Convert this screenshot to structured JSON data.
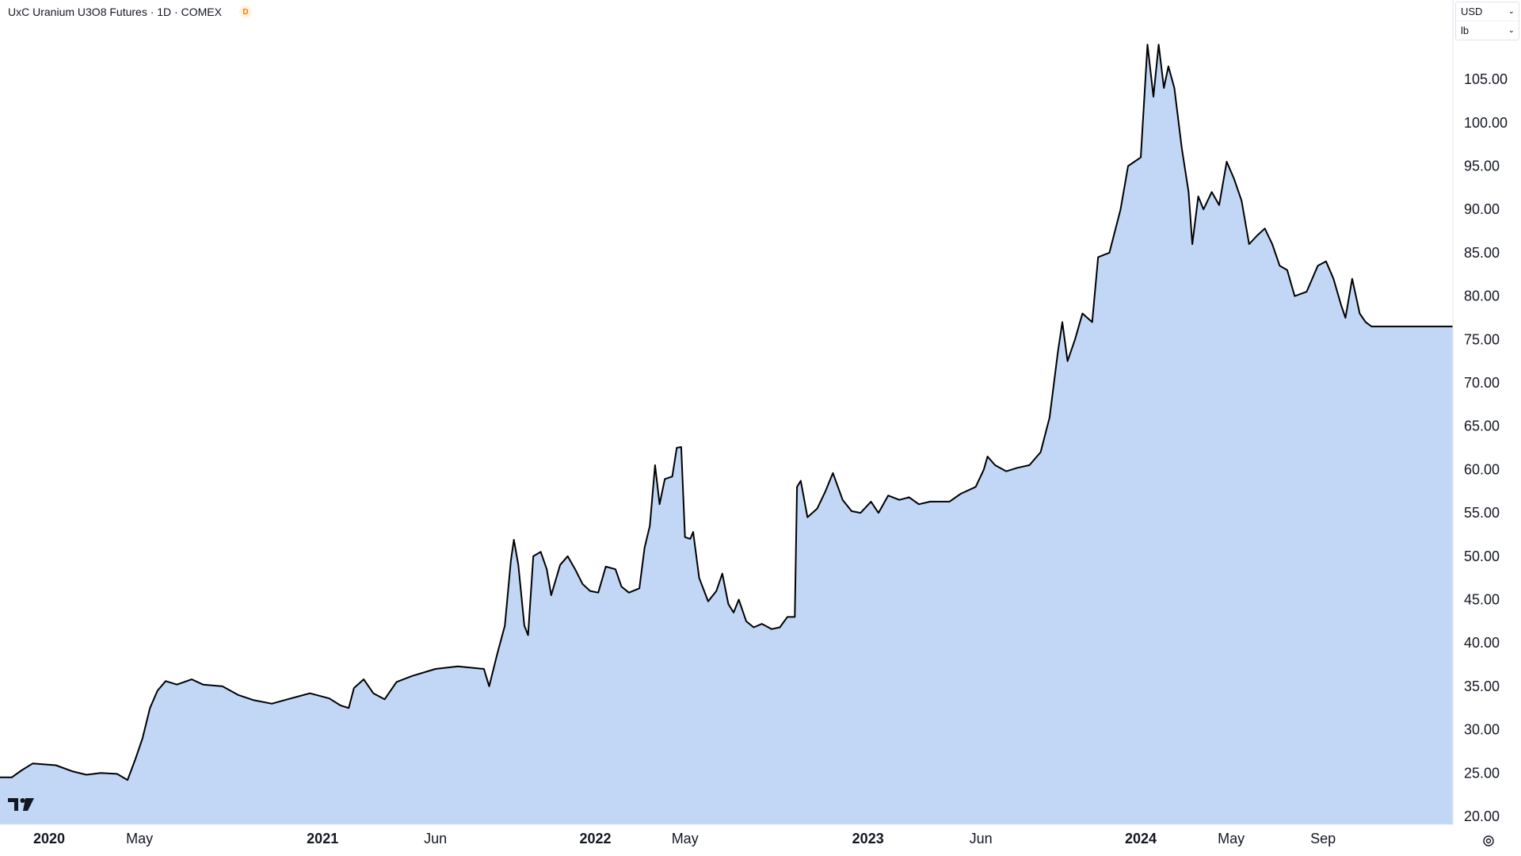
{
  "header": {
    "title": "UxC Uranium U3O8 Futures · 1D · COMEX",
    "badge": "D"
  },
  "units": {
    "currency": "USD",
    "unit": "lb"
  },
  "colors": {
    "line": "#000000",
    "area_fill": "#c2d6f5",
    "badge_bg": "#fff3e0",
    "badge_text": "#f57c00"
  },
  "icons": {
    "logo": "tradingview-logo-icon",
    "settings": "settings-icon"
  },
  "chart_data": {
    "type": "area",
    "title": "UxC Uranium U3O8 Futures · 1D · COMEX",
    "xlabel": "",
    "ylabel": "",
    "ylim": [
      20,
      112.6
    ],
    "xlim": [
      "2020-01-01",
      "2024-12-31"
    ],
    "y_ticks": [
      "20.00",
      "25.00",
      "30.00",
      "35.00",
      "40.00",
      "45.00",
      "50.00",
      "55.00",
      "60.00",
      "65.00",
      "70.00",
      "75.00",
      "80.00",
      "85.00",
      "90.00",
      "95.00",
      "100.00",
      "105.00"
    ],
    "x_ticks": [
      {
        "label": "2020",
        "date": "2020-01-01",
        "major": true
      },
      {
        "label": "May",
        "date": "2020-05-01",
        "major": false
      },
      {
        "label": "2021",
        "date": "2021-01-01",
        "major": true
      },
      {
        "label": "Jun",
        "date": "2021-06-01",
        "major": false
      },
      {
        "label": "2022",
        "date": "2022-01-01",
        "major": true
      },
      {
        "label": "May",
        "date": "2022-05-01",
        "major": false
      },
      {
        "label": "2023",
        "date": "2023-01-01",
        "major": true
      },
      {
        "label": "Jun",
        "date": "2023-06-01",
        "major": false
      },
      {
        "label": "2024",
        "date": "2024-01-01",
        "major": true
      },
      {
        "label": "May",
        "date": "2024-05-01",
        "major": false
      },
      {
        "label": "Sep",
        "date": "2024-09-01",
        "major": false
      }
    ],
    "grid": false,
    "legend": "none",
    "series": [
      {
        "name": "",
        "points": [
          [
            "2019-11-12",
            24.5
          ],
          [
            "2019-11-25",
            25.3
          ],
          [
            "2019-12-10",
            26.1
          ],
          [
            "2020-01-10",
            25.9
          ],
          [
            "2020-02-01",
            25.2
          ],
          [
            "2020-02-20",
            24.8
          ],
          [
            "2020-03-10",
            25.0
          ],
          [
            "2020-04-01",
            24.9
          ],
          [
            "2020-04-15",
            24.2
          ],
          [
            "2020-04-25",
            26.5
          ],
          [
            "2020-05-05",
            29.0
          ],
          [
            "2020-05-15",
            32.5
          ],
          [
            "2020-05-25",
            34.5
          ],
          [
            "2020-06-05",
            35.6
          ],
          [
            "2020-06-20",
            35.2
          ],
          [
            "2020-07-10",
            35.8
          ],
          [
            "2020-07-25",
            35.2
          ],
          [
            "2020-08-20",
            35.0
          ],
          [
            "2020-09-10",
            34.0
          ],
          [
            "2020-10-01",
            33.4
          ],
          [
            "2020-10-25",
            33.0
          ],
          [
            "2020-11-15",
            33.5
          ],
          [
            "2020-12-15",
            34.2
          ],
          [
            "2021-01-10",
            33.6
          ],
          [
            "2021-01-25",
            32.8
          ],
          [
            "2021-02-05",
            32.5
          ],
          [
            "2021-02-12",
            34.8
          ],
          [
            "2021-02-25",
            35.8
          ],
          [
            "2021-03-10",
            34.2
          ],
          [
            "2021-03-25",
            33.5
          ],
          [
            "2021-04-10",
            35.5
          ],
          [
            "2021-05-01",
            36.2
          ],
          [
            "2021-06-01",
            37.0
          ],
          [
            "2021-07-01",
            37.3
          ],
          [
            "2021-08-05",
            37.0
          ],
          [
            "2021-08-12",
            35.0
          ],
          [
            "2021-08-22",
            38.5
          ],
          [
            "2021-09-02",
            42.0
          ],
          [
            "2021-09-10",
            49.5
          ],
          [
            "2021-09-14",
            51.9
          ],
          [
            "2021-09-20",
            49.0
          ],
          [
            "2021-09-28",
            42.0
          ],
          [
            "2021-10-03",
            40.9
          ],
          [
            "2021-10-10",
            50.0
          ],
          [
            "2021-10-20",
            50.5
          ],
          [
            "2021-10-28",
            48.5
          ],
          [
            "2021-11-03",
            45.5
          ],
          [
            "2021-11-15",
            49.0
          ],
          [
            "2021-11-25",
            50.0
          ],
          [
            "2021-12-05",
            48.5
          ],
          [
            "2021-12-15",
            46.8
          ],
          [
            "2021-12-25",
            46.0
          ],
          [
            "2022-01-05",
            45.8
          ],
          [
            "2022-01-15",
            48.8
          ],
          [
            "2022-01-28",
            48.5
          ],
          [
            "2022-02-05",
            46.5
          ],
          [
            "2022-02-15",
            45.8
          ],
          [
            "2022-03-01",
            46.3
          ],
          [
            "2022-03-08",
            51.0
          ],
          [
            "2022-03-15",
            53.5
          ],
          [
            "2022-03-22",
            60.5
          ],
          [
            "2022-03-28",
            56.0
          ],
          [
            "2022-04-04",
            58.9
          ],
          [
            "2022-04-14",
            59.2
          ],
          [
            "2022-04-20",
            62.5
          ],
          [
            "2022-04-26",
            62.6
          ],
          [
            "2022-05-01",
            52.2
          ],
          [
            "2022-05-08",
            52.0
          ],
          [
            "2022-05-12",
            52.8
          ],
          [
            "2022-05-20",
            47.5
          ],
          [
            "2022-06-01",
            44.8
          ],
          [
            "2022-06-12",
            46.0
          ],
          [
            "2022-06-20",
            48.0
          ],
          [
            "2022-06-28",
            44.5
          ],
          [
            "2022-07-05",
            43.5
          ],
          [
            "2022-07-12",
            45.0
          ],
          [
            "2022-07-22",
            42.5
          ],
          [
            "2022-08-01",
            41.8
          ],
          [
            "2022-08-12",
            42.2
          ],
          [
            "2022-08-25",
            41.6
          ],
          [
            "2022-09-05",
            41.8
          ],
          [
            "2022-09-15",
            43.0
          ],
          [
            "2022-09-25",
            43.0
          ],
          [
            "2022-09-28",
            58.0
          ],
          [
            "2022-10-03",
            58.7
          ],
          [
            "2022-10-12",
            54.5
          ],
          [
            "2022-10-25",
            55.5
          ],
          [
            "2022-11-05",
            57.5
          ],
          [
            "2022-11-15",
            59.6
          ],
          [
            "2022-11-28",
            56.5
          ],
          [
            "2022-12-10",
            55.2
          ],
          [
            "2022-12-22",
            55.0
          ],
          [
            "2023-01-05",
            56.3
          ],
          [
            "2023-01-15",
            55.0
          ],
          [
            "2023-01-28",
            57.0
          ],
          [
            "2023-02-12",
            56.5
          ],
          [
            "2023-02-25",
            56.8
          ],
          [
            "2023-03-10",
            56.0
          ],
          [
            "2023-03-25",
            56.3
          ],
          [
            "2023-04-20",
            56.3
          ],
          [
            "2023-05-05",
            57.2
          ],
          [
            "2023-05-25",
            58.0
          ],
          [
            "2023-06-05",
            60.0
          ],
          [
            "2023-06-10",
            61.5
          ],
          [
            "2023-06-20",
            60.5
          ],
          [
            "2023-07-05",
            59.8
          ],
          [
            "2023-07-20",
            60.2
          ],
          [
            "2023-08-05",
            60.5
          ],
          [
            "2023-08-20",
            62.0
          ],
          [
            "2023-09-01",
            66.0
          ],
          [
            "2023-09-12",
            73.5
          ],
          [
            "2023-09-18",
            77.0
          ],
          [
            "2023-09-25",
            72.5
          ],
          [
            "2023-10-05",
            75.0
          ],
          [
            "2023-10-15",
            78.0
          ],
          [
            "2023-10-28",
            77.0
          ],
          [
            "2023-11-05",
            84.5
          ],
          [
            "2023-11-20",
            85.0
          ],
          [
            "2023-12-05",
            90.0
          ],
          [
            "2023-12-15",
            95.0
          ],
          [
            "2024-01-01",
            96.0
          ],
          [
            "2024-01-10",
            109.0
          ],
          [
            "2024-01-18",
            103.0
          ],
          [
            "2024-01-25",
            109.0
          ],
          [
            "2024-02-01",
            104.0
          ],
          [
            "2024-02-07",
            106.5
          ],
          [
            "2024-02-15",
            104.0
          ],
          [
            "2024-02-25",
            97.0
          ],
          [
            "2024-03-05",
            92.0
          ],
          [
            "2024-03-10",
            86.0
          ],
          [
            "2024-03-18",
            91.5
          ],
          [
            "2024-03-25",
            90.0
          ],
          [
            "2024-04-05",
            92.0
          ],
          [
            "2024-04-15",
            90.5
          ],
          [
            "2024-04-25",
            95.5
          ],
          [
            "2024-05-05",
            93.5
          ],
          [
            "2024-05-15",
            91.0
          ],
          [
            "2024-05-25",
            86.0
          ],
          [
            "2024-06-05",
            87.0
          ],
          [
            "2024-06-15",
            87.8
          ],
          [
            "2024-06-25",
            86.0
          ],
          [
            "2024-07-05",
            83.5
          ],
          [
            "2024-07-15",
            83.0
          ],
          [
            "2024-07-25",
            80.0
          ],
          [
            "2024-08-10",
            80.5
          ],
          [
            "2024-08-25",
            83.5
          ],
          [
            "2024-09-05",
            84.0
          ],
          [
            "2024-09-15",
            82.0
          ],
          [
            "2024-09-25",
            79.0
          ],
          [
            "2024-10-01",
            77.5
          ],
          [
            "2024-10-10",
            82.0
          ],
          [
            "2024-10-20",
            78.0
          ],
          [
            "2024-10-28",
            77.0
          ],
          [
            "2024-11-05",
            76.5
          ]
        ]
      }
    ]
  }
}
